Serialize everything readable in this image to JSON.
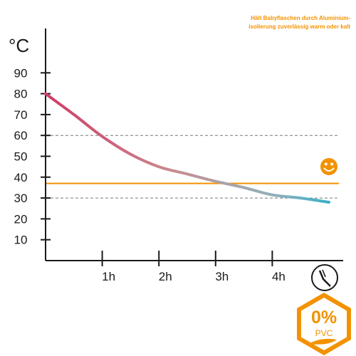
{
  "note": {
    "line1": "Hält Babyflaschen durch Aluminium-",
    "line2": "isolierung zuverlässig warm oder kalt"
  },
  "badge": {
    "value": "0%",
    "label": "PVC"
  },
  "colors": {
    "accent": "#f39200",
    "curve_start": "#cf3b64",
    "curve_mid": "#a9a3a6",
    "curve_end": "#37afc9",
    "axis": "#1a1a1a",
    "reference_dash": "#777777"
  },
  "icons": {
    "smiley": "smiley-icon",
    "clock": "clock-icon",
    "badge": "hexagon-badge-icon"
  },
  "chart_data": {
    "type": "line",
    "title": "",
    "xlabel": "",
    "ylabel": "°C",
    "x_unit": "h",
    "xlim": [
      0,
      5
    ],
    "ylim": [
      0,
      100
    ],
    "xticks": [
      {
        "value": 1,
        "label": "1h"
      },
      {
        "value": 2,
        "label": "2h"
      },
      {
        "value": 3,
        "label": "3h"
      },
      {
        "value": 4,
        "label": "4h"
      }
    ],
    "yticks": [
      {
        "value": 10,
        "label": "10"
      },
      {
        "value": 20,
        "label": "20"
      },
      {
        "value": 30,
        "label": "30"
      },
      {
        "value": 40,
        "label": "40"
      },
      {
        "value": 50,
        "label": "50"
      },
      {
        "value": 60,
        "label": "60"
      },
      {
        "value": 70,
        "label": "70"
      },
      {
        "value": 80,
        "label": "80"
      },
      {
        "value": 90,
        "label": "90"
      }
    ],
    "series": [
      {
        "x": [
          0,
          0.5,
          1,
          1.5,
          2,
          2.5,
          3,
          3.5,
          4,
          4.5,
          5
        ],
        "values": [
          80,
          70,
          59.5,
          51,
          45,
          41.5,
          38,
          35,
          31.5,
          30,
          28
        ]
      }
    ],
    "reference_lines": [
      {
        "y": 60,
        "style": "dashed"
      },
      {
        "y": 37,
        "style": "solid",
        "color": "#f39200"
      },
      {
        "y": 30,
        "style": "dashed"
      }
    ],
    "grid": false,
    "legend": "none"
  }
}
